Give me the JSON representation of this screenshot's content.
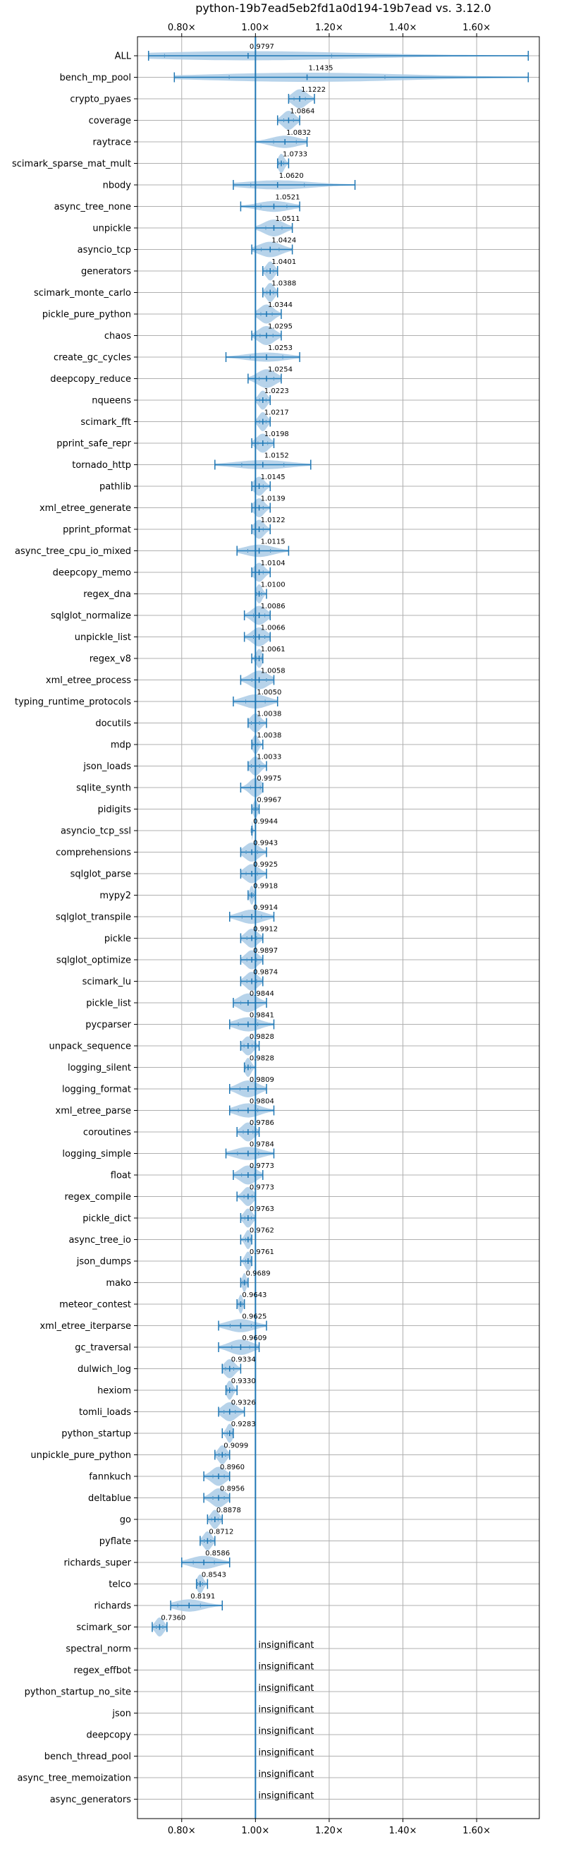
{
  "chart_data": {
    "type": "violin",
    "title": "python-19b7ead5eb2fd1a0d194-19b7ead vs. 3.12.0",
    "xlabel": "",
    "ylabel": "",
    "xlim": [
      0.68,
      1.77
    ],
    "x_ticks": [
      0.8,
      1.0,
      1.2,
      1.4,
      1.6
    ],
    "x_tick_labels": [
      "0.80×",
      "1.00×",
      "1.20×",
      "1.40×",
      "1.60×"
    ],
    "reference_line": 1.0,
    "grid": true,
    "colors": {
      "violin": "#aacbe6",
      "whisker": "#1f77b4",
      "grid": "#b0b0b0"
    },
    "insignificant_label": "insignificant",
    "benchmarks": [
      {
        "name": "ALL",
        "label": "0.9797",
        "median": 0.98,
        "min": 0.71,
        "max": 1.74
      },
      {
        "name": "bench_mp_pool",
        "label": "1.1435",
        "median": 1.14,
        "min": 0.78,
        "max": 1.74
      },
      {
        "name": "crypto_pyaes",
        "label": "1.1222",
        "median": 1.12,
        "min": 1.09,
        "max": 1.16
      },
      {
        "name": "coverage",
        "label": "1.0864",
        "median": 1.09,
        "min": 1.06,
        "max": 1.12
      },
      {
        "name": "raytrace",
        "label": "1.0832",
        "median": 1.08,
        "min": 1.0,
        "max": 1.14
      },
      {
        "name": "scimark_sparse_mat_mult",
        "label": "1.0733",
        "median": 1.07,
        "min": 1.06,
        "max": 1.09
      },
      {
        "name": "nbody",
        "label": "1.0620",
        "median": 1.06,
        "min": 0.94,
        "max": 1.27
      },
      {
        "name": "async_tree_none",
        "label": "1.0521",
        "median": 1.05,
        "min": 0.96,
        "max": 1.12
      },
      {
        "name": "unpickle",
        "label": "1.0511",
        "median": 1.05,
        "min": 1.0,
        "max": 1.1
      },
      {
        "name": "asyncio_tcp",
        "label": "1.0424",
        "median": 1.04,
        "min": 0.99,
        "max": 1.1
      },
      {
        "name": "generators",
        "label": "1.0401",
        "median": 1.04,
        "min": 1.02,
        "max": 1.06
      },
      {
        "name": "scimark_monte_carlo",
        "label": "1.0388",
        "median": 1.04,
        "min": 1.02,
        "max": 1.06
      },
      {
        "name": "pickle_pure_python",
        "label": "1.0344",
        "median": 1.03,
        "min": 1.0,
        "max": 1.07
      },
      {
        "name": "chaos",
        "label": "1.0295",
        "median": 1.03,
        "min": 0.99,
        "max": 1.07
      },
      {
        "name": "create_gc_cycles",
        "label": "1.0253",
        "median": 1.03,
        "min": 0.92,
        "max": 1.12
      },
      {
        "name": "deepcopy_reduce",
        "label": "1.0254",
        "median": 1.03,
        "min": 0.98,
        "max": 1.07
      },
      {
        "name": "nqueens",
        "label": "1.0223",
        "median": 1.02,
        "min": 1.0,
        "max": 1.04
      },
      {
        "name": "scimark_fft",
        "label": "1.0217",
        "median": 1.02,
        "min": 1.0,
        "max": 1.04
      },
      {
        "name": "pprint_safe_repr",
        "label": "1.0198",
        "median": 1.02,
        "min": 0.99,
        "max": 1.05
      },
      {
        "name": "tornado_http",
        "label": "1.0152",
        "median": 1.02,
        "min": 0.89,
        "max": 1.15
      },
      {
        "name": "pathlib",
        "label": "1.0145",
        "median": 1.01,
        "min": 0.99,
        "max": 1.04
      },
      {
        "name": "xml_etree_generate",
        "label": "1.0139",
        "median": 1.01,
        "min": 0.99,
        "max": 1.04
      },
      {
        "name": "pprint_pformat",
        "label": "1.0122",
        "median": 1.01,
        "min": 0.99,
        "max": 1.04
      },
      {
        "name": "async_tree_cpu_io_mixed",
        "label": "1.0115",
        "median": 1.01,
        "min": 0.95,
        "max": 1.09
      },
      {
        "name": "deepcopy_memo",
        "label": "1.0104",
        "median": 1.01,
        "min": 0.99,
        "max": 1.04
      },
      {
        "name": "regex_dna",
        "label": "1.0100",
        "median": 1.01,
        "min": 1.0,
        "max": 1.03
      },
      {
        "name": "sqlglot_normalize",
        "label": "1.0086",
        "median": 1.01,
        "min": 0.97,
        "max": 1.04
      },
      {
        "name": "unpickle_list",
        "label": "1.0066",
        "median": 1.01,
        "min": 0.97,
        "max": 1.04
      },
      {
        "name": "regex_v8",
        "label": "1.0061",
        "median": 1.01,
        "min": 0.99,
        "max": 1.02
      },
      {
        "name": "xml_etree_process",
        "label": "1.0058",
        "median": 1.01,
        "min": 0.96,
        "max": 1.05
      },
      {
        "name": "typing_runtime_protocols",
        "label": "1.0050",
        "median": 1.0,
        "min": 0.94,
        "max": 1.06
      },
      {
        "name": "docutils",
        "label": "1.0038",
        "median": 1.0,
        "min": 0.98,
        "max": 1.03
      },
      {
        "name": "mdp",
        "label": "1.0038",
        "median": 1.0,
        "min": 0.99,
        "max": 1.02
      },
      {
        "name": "json_loads",
        "label": "1.0033",
        "median": 1.0,
        "min": 0.98,
        "max": 1.03
      },
      {
        "name": "sqlite_synth",
        "label": "0.9975",
        "median": 1.0,
        "min": 0.96,
        "max": 1.02
      },
      {
        "name": "pidigits",
        "label": "0.9967",
        "median": 1.0,
        "min": 0.99,
        "max": 1.01
      },
      {
        "name": "asyncio_tcp_ssl",
        "label": "0.9944",
        "median": 0.99,
        "min": 0.99,
        "max": 1.0
      },
      {
        "name": "comprehensions",
        "label": "0.9943",
        "median": 0.99,
        "min": 0.96,
        "max": 1.03
      },
      {
        "name": "sqlglot_parse",
        "label": "0.9925",
        "median": 0.99,
        "min": 0.96,
        "max": 1.03
      },
      {
        "name": "mypy2",
        "label": "0.9918",
        "median": 0.99,
        "min": 0.98,
        "max": 1.0
      },
      {
        "name": "sqlglot_transpile",
        "label": "0.9914",
        "median": 0.99,
        "min": 0.93,
        "max": 1.05
      },
      {
        "name": "pickle",
        "label": "0.9912",
        "median": 0.99,
        "min": 0.96,
        "max": 1.02
      },
      {
        "name": "sqlglot_optimize",
        "label": "0.9897",
        "median": 0.99,
        "min": 0.96,
        "max": 1.02
      },
      {
        "name": "scimark_lu",
        "label": "0.9874",
        "median": 0.99,
        "min": 0.96,
        "max": 1.02
      },
      {
        "name": "pickle_list",
        "label": "0.9844",
        "median": 0.98,
        "min": 0.94,
        "max": 1.03
      },
      {
        "name": "pycparser",
        "label": "0.9841",
        "median": 0.98,
        "min": 0.93,
        "max": 1.05
      },
      {
        "name": "unpack_sequence",
        "label": "0.9828",
        "median": 0.98,
        "min": 0.96,
        "max": 1.01
      },
      {
        "name": "logging_silent",
        "label": "0.9828",
        "median": 0.98,
        "min": 0.97,
        "max": 1.0
      },
      {
        "name": "logging_format",
        "label": "0.9809",
        "median": 0.98,
        "min": 0.93,
        "max": 1.03
      },
      {
        "name": "xml_etree_parse",
        "label": "0.9804",
        "median": 0.98,
        "min": 0.93,
        "max": 1.05
      },
      {
        "name": "coroutines",
        "label": "0.9786",
        "median": 0.98,
        "min": 0.95,
        "max": 1.01
      },
      {
        "name": "logging_simple",
        "label": "0.9784",
        "median": 0.98,
        "min": 0.92,
        "max": 1.05
      },
      {
        "name": "float",
        "label": "0.9773",
        "median": 0.98,
        "min": 0.94,
        "max": 1.02
      },
      {
        "name": "regex_compile",
        "label": "0.9773",
        "median": 0.98,
        "min": 0.95,
        "max": 1.0
      },
      {
        "name": "pickle_dict",
        "label": "0.9763",
        "median": 0.98,
        "min": 0.96,
        "max": 1.0
      },
      {
        "name": "async_tree_io",
        "label": "0.9762",
        "median": 0.98,
        "min": 0.96,
        "max": 0.99
      },
      {
        "name": "json_dumps",
        "label": "0.9761",
        "median": 0.98,
        "min": 0.96,
        "max": 0.99
      },
      {
        "name": "mako",
        "label": "0.9689",
        "median": 0.97,
        "min": 0.96,
        "max": 0.98
      },
      {
        "name": "meteor_contest",
        "label": "0.9643",
        "median": 0.96,
        "min": 0.95,
        "max": 0.97
      },
      {
        "name": "xml_etree_iterparse",
        "label": "0.9625",
        "median": 0.96,
        "min": 0.9,
        "max": 1.03
      },
      {
        "name": "gc_traversal",
        "label": "0.9609",
        "median": 0.96,
        "min": 0.9,
        "max": 1.01
      },
      {
        "name": "dulwich_log",
        "label": "0.9334",
        "median": 0.93,
        "min": 0.91,
        "max": 0.96
      },
      {
        "name": "hexiom",
        "label": "0.9330",
        "median": 0.93,
        "min": 0.92,
        "max": 0.95
      },
      {
        "name": "tomli_loads",
        "label": "0.9326",
        "median": 0.93,
        "min": 0.9,
        "max": 0.97
      },
      {
        "name": "python_startup",
        "label": "0.9283",
        "median": 0.93,
        "min": 0.91,
        "max": 0.94
      },
      {
        "name": "unpickle_pure_python",
        "label": "0.9099",
        "median": 0.91,
        "min": 0.89,
        "max": 0.93
      },
      {
        "name": "fannkuch",
        "label": "0.8960",
        "median": 0.9,
        "min": 0.86,
        "max": 0.93
      },
      {
        "name": "deltablue",
        "label": "0.8956",
        "median": 0.9,
        "min": 0.86,
        "max": 0.93
      },
      {
        "name": "go",
        "label": "0.8878",
        "median": 0.89,
        "min": 0.87,
        "max": 0.91
      },
      {
        "name": "pyflate",
        "label": "0.8712",
        "median": 0.87,
        "min": 0.85,
        "max": 0.89
      },
      {
        "name": "richards_super",
        "label": "0.8586",
        "median": 0.86,
        "min": 0.8,
        "max": 0.93
      },
      {
        "name": "telco",
        "label": "0.8543",
        "median": 0.85,
        "min": 0.84,
        "max": 0.87
      },
      {
        "name": "richards",
        "label": "0.8191",
        "median": 0.82,
        "min": 0.77,
        "max": 0.91
      },
      {
        "name": "scimark_sor",
        "label": "0.7360",
        "median": 0.74,
        "min": 0.72,
        "max": 0.76
      },
      {
        "name": "spectral_norm",
        "insignificant": true
      },
      {
        "name": "regex_effbot",
        "insignificant": true
      },
      {
        "name": "python_startup_no_site",
        "insignificant": true
      },
      {
        "name": "json",
        "insignificant": true
      },
      {
        "name": "deepcopy",
        "insignificant": true
      },
      {
        "name": "bench_thread_pool",
        "insignificant": true
      },
      {
        "name": "async_tree_memoization",
        "insignificant": true
      },
      {
        "name": "async_generators",
        "insignificant": true
      }
    ]
  }
}
